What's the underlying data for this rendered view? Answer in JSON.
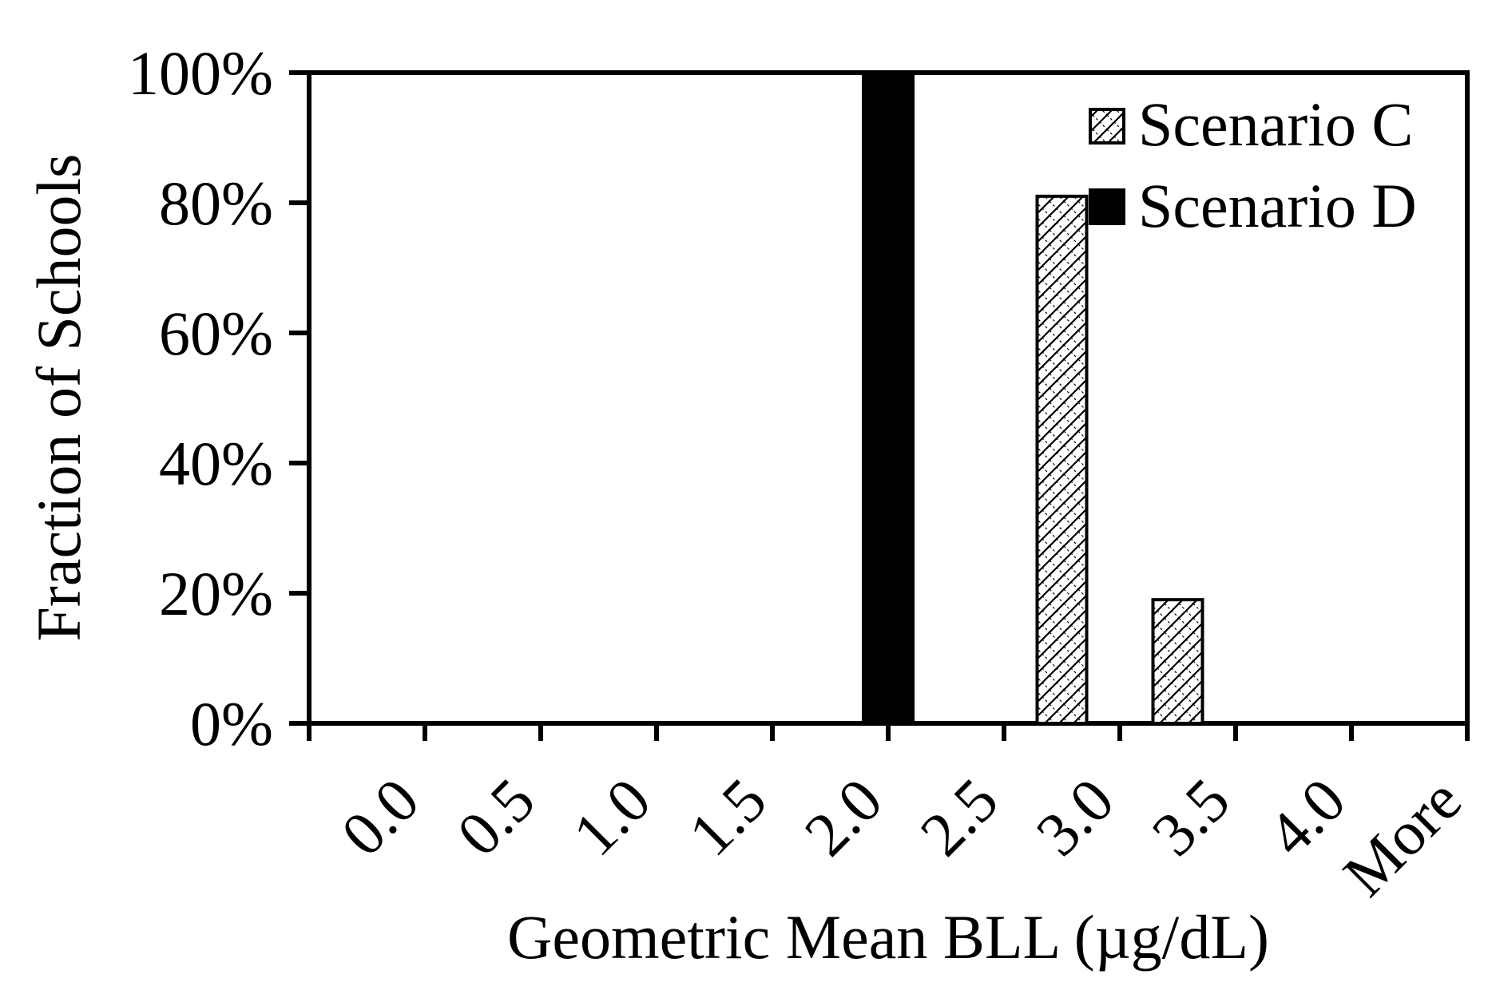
{
  "chart_data": {
    "type": "bar",
    "categories": [
      "0.0",
      "0.5",
      "1.0",
      "1.5",
      "2.0",
      "2.5",
      "3.0",
      "3.5",
      "4.0",
      "More"
    ],
    "series": [
      {
        "name": "Scenario C",
        "values": [
          0,
          0,
          0,
          0,
          0,
          0,
          81,
          19,
          0,
          0
        ],
        "color": "#000000",
        "pattern": "diagonal-crosshatch"
      },
      {
        "name": "Scenario D",
        "values": [
          0,
          0,
          0,
          0,
          100,
          0,
          0,
          0,
          0,
          0
        ],
        "color": "#000000",
        "pattern": "solid"
      }
    ],
    "xlabel": "Geometric Mean BLL (µg/dL)",
    "ylabel": "Fraction of Schools",
    "ylim": [
      0,
      100
    ],
    "yticks": [
      "0%",
      "20%",
      "40%",
      "60%",
      "80%",
      "100%"
    ],
    "grid": false,
    "legend_position": "top-right"
  }
}
